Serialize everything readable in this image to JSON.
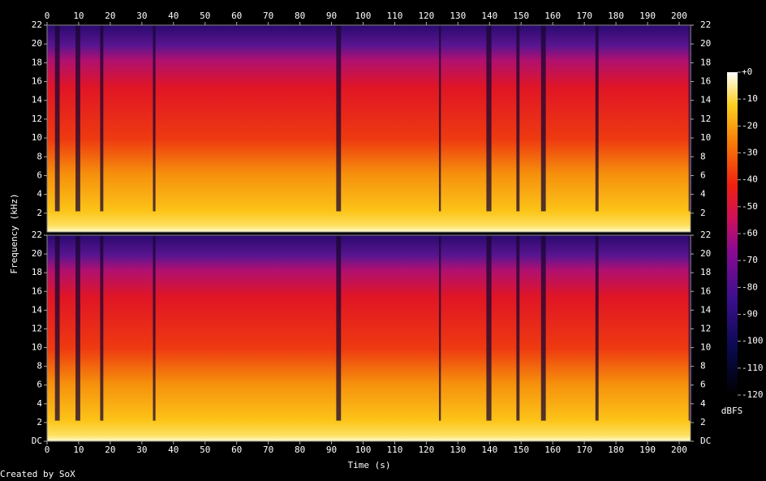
{
  "chart_data": {
    "type": "spectrogram",
    "x_label": "Time (s)",
    "y_label": "Frequency (kHz)",
    "xlim": [
      0,
      203.6
    ],
    "xticks": [
      0,
      10,
      20,
      30,
      40,
      50,
      60,
      70,
      80,
      90,
      100,
      110,
      120,
      130,
      140,
      150,
      160,
      170,
      180,
      190,
      200
    ],
    "channels": [
      {
        "ylim": [
          0,
          22
        ],
        "yticks": [
          2,
          4,
          6,
          8,
          10,
          12,
          14,
          16,
          18,
          20,
          22
        ]
      },
      {
        "ylim": [
          0,
          22
        ],
        "yticks": [
          {
            "value": 0,
            "label": "DC"
          },
          2,
          4,
          6,
          8,
          10,
          12,
          14,
          16,
          18,
          20,
          22
        ]
      }
    ],
    "colorbar": {
      "label": "dBFS",
      "lim": [
        -120,
        0
      ],
      "ticks": [
        {
          "value": 0,
          "label": "+0"
        },
        -10,
        -20,
        -30,
        -40,
        -50,
        -60,
        -70,
        -80,
        -90,
        -100,
        -110,
        -120
      ]
    },
    "footer": "Created by SoX"
  }
}
